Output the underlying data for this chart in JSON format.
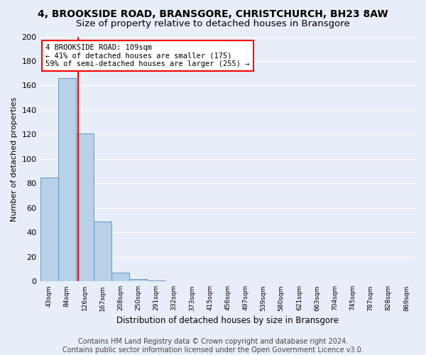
{
  "title1": "4, BROOKSIDE ROAD, BRANSGORE, CHRISTCHURCH, BH23 8AW",
  "title2": "Size of property relative to detached houses in Bransgore",
  "xlabel": "Distribution of detached houses by size in Bransgore",
  "ylabel": "Number of detached properties",
  "categories": [
    "43sqm",
    "84sqm",
    "126sqm",
    "167sqm",
    "208sqm",
    "250sqm",
    "291sqm",
    "332sqm",
    "373sqm",
    "415sqm",
    "456sqm",
    "497sqm",
    "539sqm",
    "580sqm",
    "621sqm",
    "663sqm",
    "704sqm",
    "745sqm",
    "787sqm",
    "828sqm",
    "869sqm"
  ],
  "bar_heights": [
    85,
    166,
    121,
    49,
    7,
    2,
    1,
    0,
    0,
    0,
    0,
    0,
    0,
    0,
    0,
    0,
    0,
    0,
    0,
    0,
    0
  ],
  "bar_color": "#b8d0e8",
  "bar_edge_color": "#6699bb",
  "vline_x": 1.62,
  "vline_color": "red",
  "annotation_text": "4 BROOKSIDE ROAD: 109sqm\n← 41% of detached houses are smaller (175)\n59% of semi-detached houses are larger (255) →",
  "annotation_box_color": "white",
  "annotation_box_edge_color": "red",
  "ylim": [
    0,
    200
  ],
  "yticks": [
    0,
    20,
    40,
    60,
    80,
    100,
    120,
    140,
    160,
    180,
    200
  ],
  "footer": "Contains HM Land Registry data © Crown copyright and database right 2024.\nContains public sector information licensed under the Open Government Licence v3.0.",
  "bg_color": "#e8eef7",
  "plot_bg_color": "#e8eef7",
  "title1_fontsize": 10,
  "title2_fontsize": 9.5,
  "xlabel_fontsize": 8.5,
  "ylabel_fontsize": 8,
  "footer_fontsize": 7,
  "grid_color": "white",
  "annotation_fontsize": 7.5
}
